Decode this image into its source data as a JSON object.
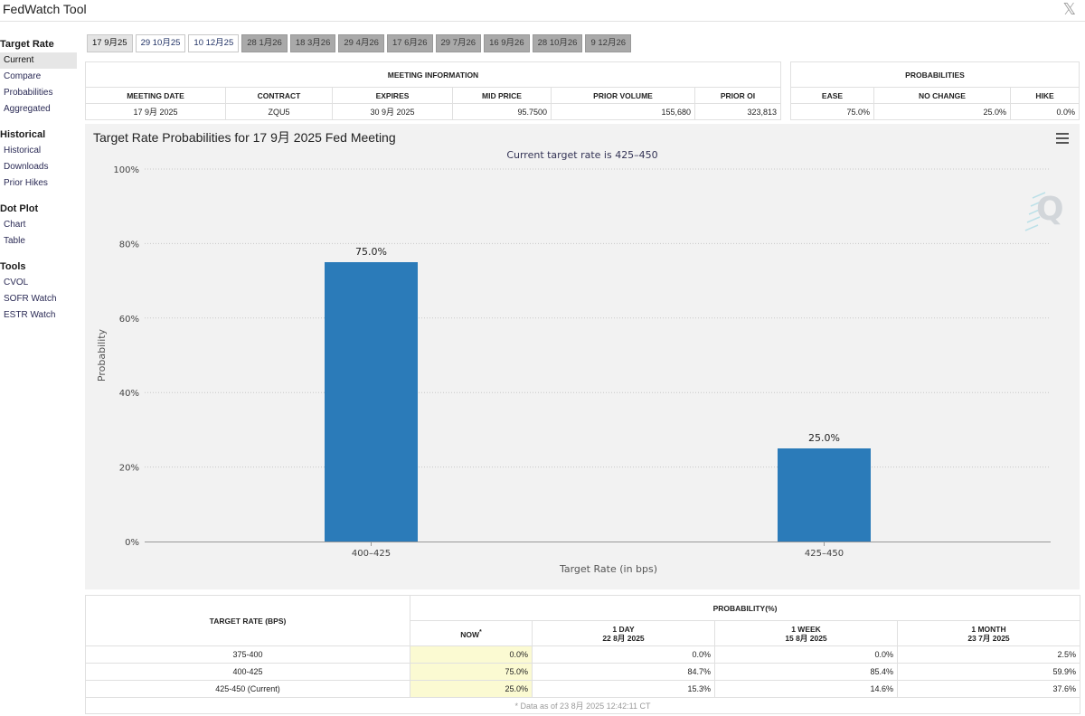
{
  "window": {
    "title": "FedWatch Tool",
    "close_glyph": "𝕏"
  },
  "sidebar": [
    {
      "head": "Target Rate",
      "items": [
        {
          "label": "Current",
          "active": true
        },
        {
          "label": "Compare"
        },
        {
          "label": "Probabilities"
        },
        {
          "label": "Aggregated"
        }
      ]
    },
    {
      "head": "Historical",
      "items": [
        {
          "label": "Historical"
        },
        {
          "label": "Downloads"
        },
        {
          "label": "Prior Hikes"
        }
      ]
    },
    {
      "head": "Dot Plot",
      "items": [
        {
          "label": "Chart"
        },
        {
          "label": "Table"
        }
      ]
    },
    {
      "head": "Tools",
      "items": [
        {
          "label": "CVOL"
        },
        {
          "label": "SOFR Watch"
        },
        {
          "label": "ESTR Watch"
        }
      ]
    }
  ],
  "meeting_tabs": [
    {
      "label": "17 9月25",
      "style": "active"
    },
    {
      "label": "29 10月25",
      "style": "light"
    },
    {
      "label": "10 12月25",
      "style": "light"
    },
    {
      "label": "28 1月26",
      "style": "dark"
    },
    {
      "label": "18 3月26",
      "style": "dark"
    },
    {
      "label": "29 4月26",
      "style": "dark"
    },
    {
      "label": "17 6月26",
      "style": "dark"
    },
    {
      "label": "29 7月26",
      "style": "dark"
    },
    {
      "label": "16 9月26",
      "style": "dark"
    },
    {
      "label": "28 10月26",
      "style": "dark"
    },
    {
      "label": "9 12月26",
      "style": "dark"
    }
  ],
  "meeting_info": {
    "header": "MEETING INFORMATION",
    "columns": [
      "MEETING DATE",
      "CONTRACT",
      "EXPIRES",
      "MID PRICE",
      "PRIOR VOLUME",
      "PRIOR OI"
    ],
    "values": [
      "17 9月 2025",
      "ZQU5",
      "30 9月 2025",
      "95.7500",
      "155,680",
      "323,813"
    ]
  },
  "probabilities": {
    "header": "PROBABILITIES",
    "columns": [
      "EASE",
      "NO CHANGE",
      "HIKE"
    ],
    "values": [
      "75.0%",
      "25.0%",
      "0.0%"
    ]
  },
  "chart": {
    "title": "Target Rate Probabilities for 17 9月 2025 Fed Meeting",
    "subtitle": "Current target rate is 425–450",
    "watermark": "Q"
  },
  "chart_data": {
    "type": "bar",
    "title": "Target Rate Probabilities for 17 9月 2025 Fed Meeting",
    "subtitle": "Current target rate is 425–450",
    "categories": [
      "400–425",
      "425–450"
    ],
    "values": [
      75.0,
      25.0
    ],
    "data_labels": [
      "75.0%",
      "25.0%"
    ],
    "xlabel": "Target Rate (in bps)",
    "ylabel": "Probability",
    "ylim": [
      0,
      100
    ],
    "yticks": [
      0,
      20,
      40,
      60,
      80,
      100
    ],
    "ytick_labels": [
      "0%",
      "20%",
      "40%",
      "60%",
      "80%",
      "100%"
    ],
    "bar_color": "#2b7bb9",
    "grid": "horizontal-dotted",
    "legend": "none"
  },
  "rate_table": {
    "rate_header": "TARGET RATE (BPS)",
    "prob_header": "PROBABILITY(%)",
    "now_label": "NOW",
    "now_mark": "*",
    "periods": [
      {
        "label": "1 DAY",
        "date": "22 8月 2025"
      },
      {
        "label": "1 WEEK",
        "date": "15 8月 2025"
      },
      {
        "label": "1 MONTH",
        "date": "23 7月 2025"
      }
    ],
    "rows": [
      {
        "rate": "375-400",
        "now": "0.0%",
        "day": "0.0%",
        "week": "0.0%",
        "month": "2.5%"
      },
      {
        "rate": "400-425",
        "now": "75.0%",
        "day": "84.7%",
        "week": "85.4%",
        "month": "59.9%"
      },
      {
        "rate": "425-450 (Current)",
        "now": "25.0%",
        "day": "15.3%",
        "week": "14.6%",
        "month": "37.6%"
      }
    ],
    "footnote": "* Data as of 23 8月 2025 12:42:11 CT"
  }
}
